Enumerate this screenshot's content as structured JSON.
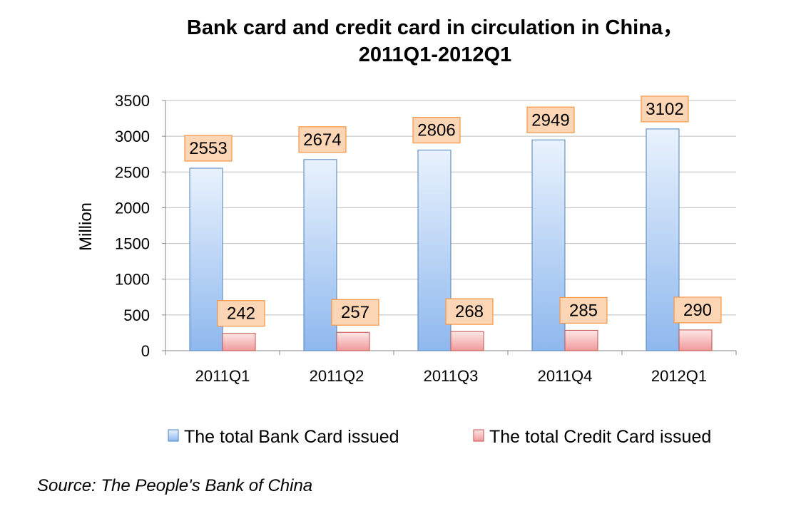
{
  "chart_data": {
    "type": "bar",
    "title_line1": "Bank card and credit card in circulation in China，",
    "title_line2": "2011Q1-2012Q1",
    "xlabel": "",
    "ylabel": "Million",
    "categories": [
      "2011Q1",
      "2011Q2",
      "2011Q3",
      "2011Q4",
      "2012Q1"
    ],
    "series": [
      {
        "name": "The total Bank Card issued",
        "values": [
          2553,
          2674,
          2806,
          2949,
          3102
        ],
        "color": "#9DC3F2"
      },
      {
        "name": "The total Credit Card issued",
        "values": [
          242,
          257,
          268,
          285,
          290
        ],
        "color": "#F4A9A8"
      }
    ],
    "ylim": [
      0,
      3500
    ],
    "yticks": [
      0,
      500,
      1000,
      1500,
      2000,
      2500,
      3000,
      3500
    ],
    "grid": true,
    "legend_position": "bottom",
    "data_label_fill": "#FCD5B5",
    "data_label_border": "#F79646"
  },
  "source": "Source: The People's Bank of China"
}
